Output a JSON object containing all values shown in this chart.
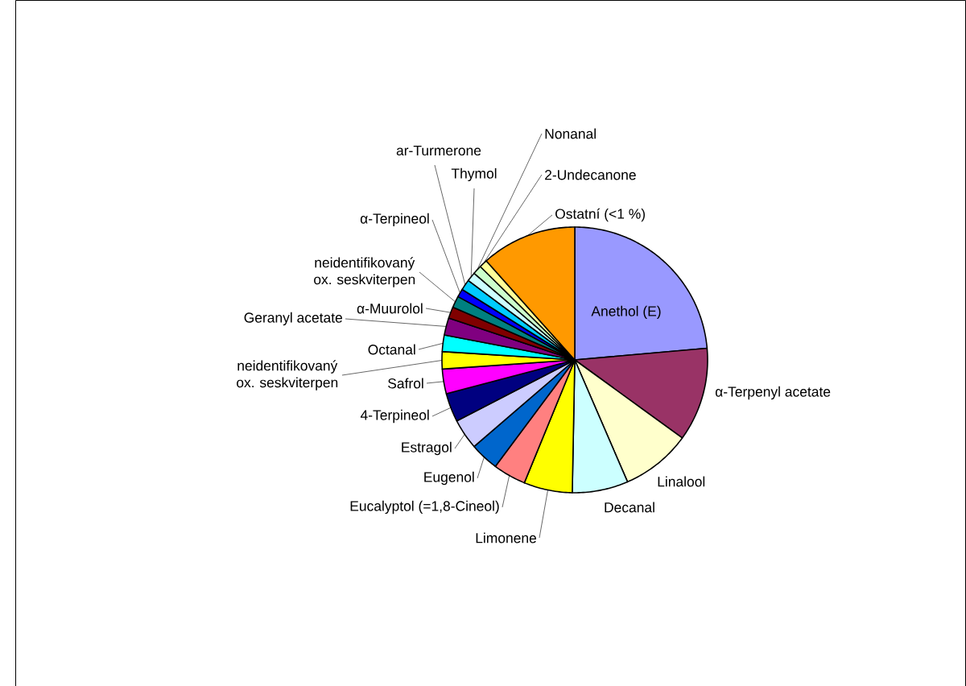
{
  "chart_data": {
    "type": "pie",
    "categories": [
      "Anethol (E)",
      "α-Terpenyl acetate",
      "Linalool",
      "Decanal",
      "Limonene",
      "Eucalyptol (=1,8-Cineol)",
      "Eugenol",
      "Estragol",
      "4-Terpineol",
      "Safrol",
      "neidentifikovaný ox. seskviterpen",
      "Octanal",
      "Geranyl acetate",
      "α-Muurolol",
      "neidentifikovaný ox. seskviterpen",
      "α-Terpineol",
      "ar-Turmerone",
      "Thymol",
      "Nonanal",
      "2-Undecanone",
      "Ostatní (<1 %)"
    ],
    "values": [
      23.6,
      11.4,
      8.5,
      6.8,
      5.9,
      4.0,
      3.5,
      3.7,
      3.5,
      3.0,
      2.1,
      2.0,
      2.1,
      1.4,
      1.4,
      1.0,
      1.3,
      1.1,
      1.1,
      1.0,
      11.6
    ],
    "colors": [
      "#9999ff",
      "#993366",
      "#ffffcc",
      "#ccffff",
      "#ffff00",
      "#ff8080",
      "#0066cc",
      "#ccccff",
      "#000080",
      "#ff00ff",
      "#ffff00",
      "#00ffff",
      "#800080",
      "#800000",
      "#008080",
      "#0000ff",
      "#00ccff",
      "#ccffff",
      "#ccffcc",
      "#ffff99",
      "#ff9900"
    ]
  }
}
